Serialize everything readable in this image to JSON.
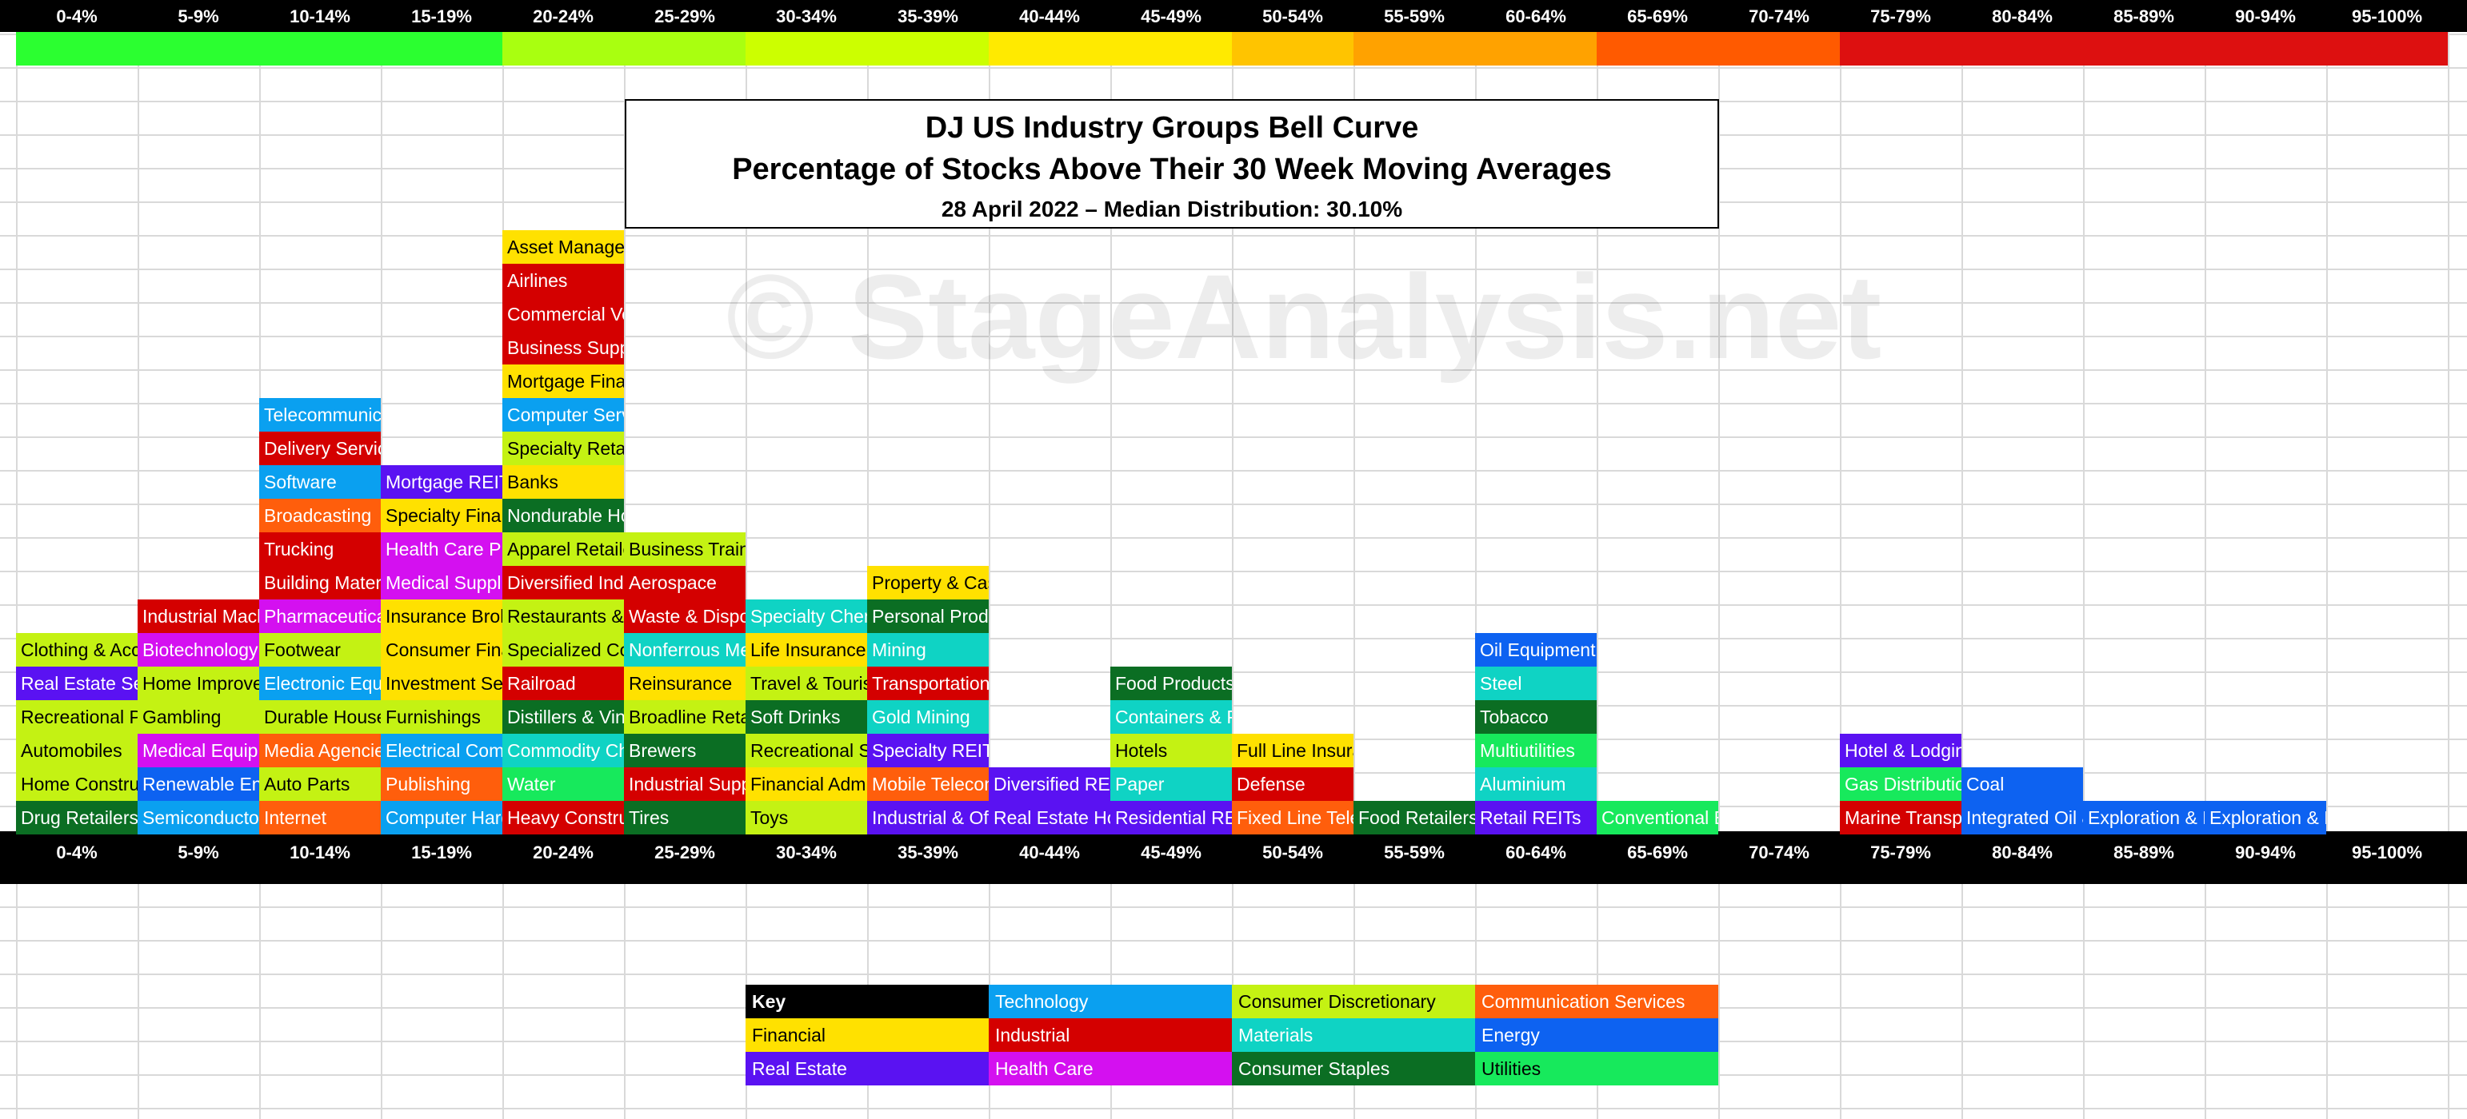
{
  "colors": {
    "Financial": "#ffe100",
    "Industrial": "#d40000",
    "Technology": "#0aa0f0",
    "Consumer Discretionary": "#c4f213",
    "Materials": "#0fd3c4",
    "Consumer Staples": "#0b6e23",
    "Communication Services": "#ff5e0c",
    "Energy": "#0d62f1",
    "Real Estate": "#5a12f2",
    "Health Care": "#d410f0",
    "Utilities": "#17e95c",
    "Key": "#000000"
  },
  "heat_colors": [
    "#2bff30",
    "#2bff30",
    "#2bff30",
    "#2bff30",
    "#a9ff10",
    "#a9ff10",
    "#ccff00",
    "#ccff00",
    "#ffea00",
    "#ffea00",
    "#ffc400",
    "#ffa200",
    "#ffa200",
    "#ff5a00",
    "#ff5a00",
    "#dd1010",
    "#dd1010",
    "#dd1010",
    "#dd1010",
    "#dd1010"
  ],
  "chart_data": {
    "type": "table",
    "title": "DJ US Industry Groups Bell Curve",
    "subtitle": "Percentage of Stocks Above Their 30 Week Moving Averages",
    "date_line": "28 April 2022 – Median Distribution: 30.10%",
    "watermark": "© StageAnalysis.net",
    "categories": [
      "0-4%",
      "5-9%",
      "10-14%",
      "15-19%",
      "20-24%",
      "25-29%",
      "30-34%",
      "35-39%",
      "40-44%",
      "45-49%",
      "50-54%",
      "55-59%",
      "60-64%",
      "65-69%",
      "70-74%",
      "75-79%",
      "80-84%",
      "85-89%",
      "90-94%",
      "95-100%"
    ],
    "columns": [
      [
        [
          "Drug Retailers",
          "Consumer Staples"
        ],
        [
          "Home Construction",
          "Consumer Discretionary"
        ],
        [
          "Automobiles",
          "Consumer Discretionary"
        ],
        [
          "Recreational Products",
          "Consumer Discretionary"
        ],
        [
          "Real Estate Services",
          "Real Estate"
        ],
        [
          "Clothing & Accessories",
          "Consumer Discretionary"
        ]
      ],
      [
        [
          "Semiconductors",
          "Technology"
        ],
        [
          "Renewable Energy",
          "Energy"
        ],
        [
          "Medical Equipment",
          "Health Care"
        ],
        [
          "Gambling",
          "Consumer Discretionary"
        ],
        [
          "Home Improvement",
          "Consumer Discretionary"
        ],
        [
          "Biotechnology",
          "Health Care"
        ],
        [
          "Industrial Machinery",
          "Industrial"
        ]
      ],
      [
        [
          "Internet",
          "Communication Services"
        ],
        [
          "Auto Parts",
          "Consumer Discretionary"
        ],
        [
          "Media Agencies",
          "Communication Services"
        ],
        [
          "Durable Household",
          "Consumer Discretionary"
        ],
        [
          "Electronic Equipment",
          "Technology"
        ],
        [
          "Footwear",
          "Consumer Discretionary"
        ],
        [
          "Pharmaceuticals",
          "Health Care"
        ],
        [
          "Building Materials",
          "Industrial"
        ],
        [
          "Trucking",
          "Industrial"
        ],
        [
          "Broadcasting",
          "Communication Services"
        ],
        [
          "Software",
          "Technology"
        ],
        [
          "Delivery Services",
          "Industrial"
        ],
        [
          "Telecommunications",
          "Technology"
        ]
      ],
      [
        [
          "Computer Hardware",
          "Technology"
        ],
        [
          "Publishing",
          "Communication Services"
        ],
        [
          "Electrical Components",
          "Technology"
        ],
        [
          "Furnishings",
          "Consumer Discretionary"
        ],
        [
          "Investment Services",
          "Financial"
        ],
        [
          "Consumer Finance",
          "Financial"
        ],
        [
          "Insurance Brokers",
          "Financial"
        ],
        [
          "Medical Supplies",
          "Health Care"
        ],
        [
          "Health Care Providers",
          "Health Care"
        ],
        [
          "Specialty Finance",
          "Financial"
        ],
        [
          "Mortgage REITs",
          "Real Estate"
        ]
      ],
      [
        [
          "Heavy Construction",
          "Industrial"
        ],
        [
          "Water",
          "Utilities"
        ],
        [
          "Commodity Chemicals",
          "Materials"
        ],
        [
          "Distillers & Vintners",
          "Consumer Staples"
        ],
        [
          "Railroad",
          "Industrial"
        ],
        [
          "Specialized Consumer",
          "Consumer Discretionary"
        ],
        [
          "Restaurants & Bars",
          "Consumer Discretionary"
        ],
        [
          "Diversified Industrials",
          "Industrial"
        ],
        [
          "Apparel Retailers",
          "Consumer Discretionary"
        ],
        [
          "Nondurable Household",
          "Consumer Staples"
        ],
        [
          "Banks",
          "Financial"
        ],
        [
          "Specialty Retailers",
          "Consumer Discretionary"
        ],
        [
          "Computer Services",
          "Technology"
        ],
        [
          "Mortgage Finance",
          "Financial"
        ],
        [
          "Business Support",
          "Industrial"
        ],
        [
          "Commercial Vehicles",
          "Industrial"
        ],
        [
          "Airlines",
          "Industrial"
        ],
        [
          "Asset Managers",
          "Financial"
        ]
      ],
      [
        [
          "Tires",
          "Consumer Staples"
        ],
        [
          "Industrial Suppliers",
          "Industrial"
        ],
        [
          "Brewers",
          "Consumer Staples"
        ],
        [
          "Broadline Retailers",
          "Consumer Discretionary"
        ],
        [
          "Reinsurance",
          "Financial"
        ],
        [
          "Nonferrous Metals",
          "Materials"
        ],
        [
          "Waste & Disposal",
          "Industrial"
        ],
        [
          "Aerospace",
          "Industrial"
        ],
        [
          "Business Training",
          "Consumer Discretionary"
        ]
      ],
      [
        [
          "Toys",
          "Consumer Discretionary"
        ],
        [
          "Financial Administration",
          "Financial"
        ],
        [
          "Recreational Services",
          "Consumer Discretionary"
        ],
        [
          "Soft Drinks",
          "Consumer Staples"
        ],
        [
          "Travel & Tourism",
          "Consumer Discretionary"
        ],
        [
          "Life Insurance",
          "Financial"
        ],
        [
          "Specialty Chemicals",
          "Materials"
        ]
      ],
      [
        [
          "Industrial & Office REITs",
          "Real Estate"
        ],
        [
          "Mobile Telecommunications",
          "Communication Services"
        ],
        [
          "Specialty REITs",
          "Real Estate"
        ],
        [
          "Gold Mining",
          "Materials"
        ],
        [
          "Transportation Services",
          "Industrial"
        ],
        [
          "Mining",
          "Materials"
        ],
        [
          "Personal Products",
          "Consumer Staples"
        ],
        [
          "Property & Casualty",
          "Financial"
        ]
      ],
      [
        [
          "Real Estate Holding",
          "Real Estate"
        ],
        [
          "Diversified REITs",
          "Real Estate"
        ]
      ],
      [
        [
          "Residential REITs",
          "Real Estate"
        ],
        [
          "Paper",
          "Materials"
        ],
        [
          "Hotels",
          "Consumer Discretionary"
        ],
        [
          "Containers & Packaging",
          "Materials"
        ],
        [
          "Food Products",
          "Consumer Staples"
        ]
      ],
      [
        [
          "Fixed Line Telecommunications",
          "Communication Services"
        ],
        [
          "Defense",
          "Industrial"
        ],
        [
          "Full Line Insurance",
          "Financial"
        ]
      ],
      [
        [
          "Food Retailers",
          "Consumer Staples"
        ]
      ],
      [
        [
          "Retail REITs",
          "Real Estate"
        ],
        [
          "Aluminium",
          "Materials"
        ],
        [
          "Multiutilities",
          "Utilities"
        ],
        [
          "Tobacco",
          "Consumer Staples"
        ],
        [
          "Steel",
          "Materials"
        ],
        [
          "Oil Equipment",
          "Energy"
        ]
      ],
      [
        [
          "Conventional Electricity",
          "Utilities"
        ]
      ],
      [],
      [
        [
          "Marine Transportation",
          "Industrial"
        ],
        [
          "Gas Distribution",
          "Utilities"
        ],
        [
          "Hotel & Lodging REITs",
          "Real Estate"
        ]
      ],
      [
        [
          "Integrated Oil & Gas",
          "Energy"
        ],
        [
          "Coal",
          "Energy"
        ]
      ],
      [
        [
          "Exploration & Pipelines",
          "Energy"
        ]
      ],
      [
        [
          "Exploration & Pipelines",
          "Energy"
        ]
      ],
      []
    ]
  },
  "key": [
    [
      "Key",
      "Technology",
      "Consumer Discretionary",
      "Communication Services"
    ],
    [
      "Financial",
      "Industrial",
      "Materials",
      "Energy"
    ],
    [
      "Real Estate",
      "Health Care",
      "Consumer Staples",
      "Utilities"
    ]
  ]
}
